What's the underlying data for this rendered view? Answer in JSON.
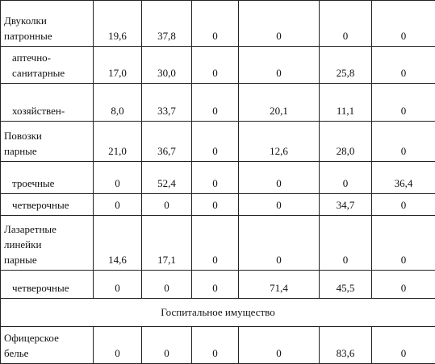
{
  "table": {
    "rows": [
      {
        "label": [
          "Двуколки",
          "патронные"
        ],
        "cells": [
          "19,6",
          "37,8",
          "0",
          "0",
          "0",
          "0"
        ],
        "indent": false
      },
      {
        "label": [
          "аптечно-",
          "санитарные"
        ],
        "cells": [
          "17,0",
          "30,0",
          "0",
          "0",
          "25,8",
          "0"
        ],
        "indent": true
      },
      {
        "label": [
          "хозяйствен-"
        ],
        "cells": [
          "8,0",
          "33,7",
          "0",
          "20,1",
          "11,1",
          "0"
        ],
        "indent": true
      },
      {
        "label": [
          "Повозки",
          "парные"
        ],
        "cells": [
          "21,0",
          "36,7",
          "0",
          "12,6",
          "28,0",
          "0"
        ],
        "indent": false
      },
      {
        "label": [
          "троечные"
        ],
        "cells": [
          "0",
          "52,4",
          "0",
          "0",
          "0",
          "36,4"
        ],
        "indent": true
      },
      {
        "label": [
          "четверочные"
        ],
        "cells": [
          "0",
          "0",
          "0",
          "0",
          "34,7",
          "0"
        ],
        "indent": true
      },
      {
        "label": [
          "Лазаретные",
          "линейки",
          "парные"
        ],
        "cells": [
          "14,6",
          "17,1",
          "0",
          "0",
          "0",
          "0"
        ],
        "indent": false
      },
      {
        "label": [
          "четверочные"
        ],
        "cells": [
          "0",
          "0",
          "0",
          "71,4",
          "45,5",
          "0"
        ],
        "indent": true
      },
      {
        "section": "Госпитальное имущество"
      },
      {
        "label": [
          "Офицерское",
          "белье"
        ],
        "cells": [
          "0",
          "0",
          "0",
          "0",
          "83,6",
          "0"
        ],
        "indent": false
      }
    ]
  }
}
